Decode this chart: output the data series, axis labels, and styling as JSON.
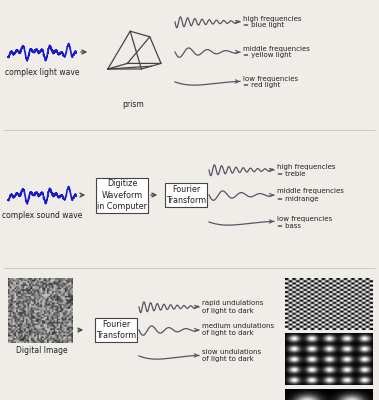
{
  "bg_color": "#f0ede8",
  "wave_color": "#1a1acc",
  "line_color": "#444444",
  "box_color": "#ffffff",
  "text_color": "#222222",
  "section1": {
    "wave_label": "complex light wave",
    "prism_label": "prism",
    "outputs": [
      {
        "label": "high frequencies\n= blue light",
        "freq": 9
      },
      {
        "label": "middle frequencies\n= yellow light",
        "freq": 3.5
      },
      {
        "label": "low frequencies\n= red light",
        "freq": 0.6
      }
    ]
  },
  "section2": {
    "wave_label": "complex sound wave",
    "box1": "Digitize\nWaveform\nin Computer",
    "box2": "Fourier\nTransform",
    "outputs": [
      {
        "label": "high frequencies\n= treble",
        "freq": 9
      },
      {
        "label": "middle frequencies\n= midrange",
        "freq": 3.5
      },
      {
        "label": "low frequencies\n= bass",
        "freq": 0.6
      }
    ]
  },
  "section3": {
    "image_label": "Digital Image",
    "box1": "Fourier\nTransform",
    "outputs": [
      {
        "label": "rapid undulations\nof light to dark",
        "freq": 9
      },
      {
        "label": "medium undulations\nof light to dark",
        "freq": 3.5
      },
      {
        "label": "slow undulations\nof light to dark",
        "freq": 0.6
      }
    ]
  }
}
